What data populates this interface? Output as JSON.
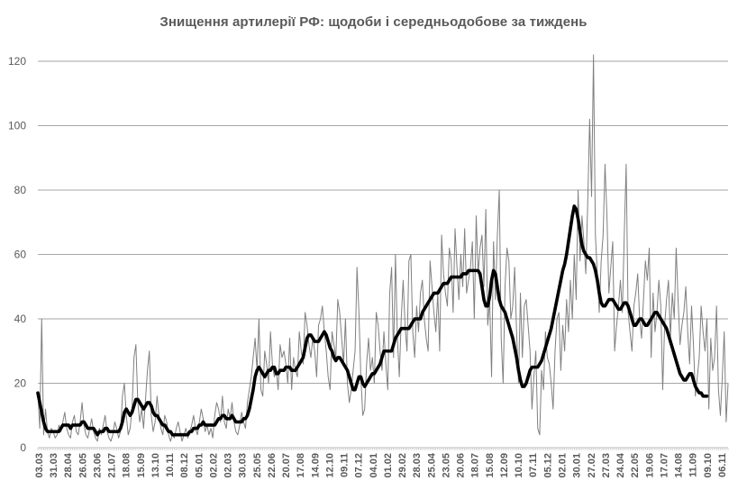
{
  "chart_data": {
    "type": "line",
    "title": "Знищення артилерії РФ: щодоби і середньодобове за тиждень",
    "xlabel": "",
    "ylabel": "",
    "ylim": [
      0,
      120
    ],
    "yticks": [
      0,
      20,
      40,
      60,
      80,
      100,
      120
    ],
    "grid": true,
    "legend": "none",
    "x_tick_labels": [
      "03.03",
      "31.03",
      "28.04",
      "26.05",
      "23.06",
      "21.07",
      "18.08",
      "15.09",
      "13.10",
      "10.11",
      "08.12",
      "05.01",
      "02.02",
      "02.03",
      "30.03",
      "25.05",
      "22.06",
      "20.07",
      "17.08",
      "14.09",
      "12.10",
      "09.11",
      "07.12",
      "04.01",
      "01.02",
      "29.02",
      "28.03",
      "25.04",
      "23.05",
      "20.06",
      "18.07",
      "15.08",
      "12.09",
      "10.10",
      "07.11",
      "05.12",
      "02.01",
      "30.01",
      "27.02",
      "27.03",
      "24.04",
      "22.05",
      "19.06",
      "17.07",
      "14.08",
      "11.09",
      "09.10",
      "06.11"
    ],
    "series": [
      {
        "name": "",
        "color": "#808080",
        "style": "thin",
        "values": [
          17,
          6,
          40,
          4,
          12,
          5,
          3,
          6,
          5,
          3,
          4,
          7,
          5,
          8,
          11,
          6,
          4,
          3,
          8,
          10,
          5,
          4,
          8,
          14,
          7,
          4,
          3,
          6,
          9,
          5,
          3,
          2,
          6,
          4,
          7,
          10,
          5,
          3,
          2,
          4,
          8,
          6,
          3,
          5,
          16,
          20,
          10,
          4,
          6,
          12,
          28,
          32,
          14,
          8,
          12,
          6,
          15,
          24,
          30,
          10,
          5,
          8,
          16,
          10,
          6,
          4,
          10,
          8,
          4,
          2,
          4,
          3,
          6,
          8,
          5,
          2,
          4,
          6,
          3,
          5,
          7,
          10,
          6,
          4,
          8,
          12,
          9,
          5,
          7,
          4,
          6,
          3,
          10,
          14,
          12,
          8,
          16,
          8,
          6,
          12,
          9,
          14,
          8,
          5,
          4,
          7,
          11,
          8,
          6,
          14,
          18,
          22,
          28,
          34,
          24,
          40,
          18,
          16,
          30,
          26,
          20,
          36,
          26,
          22,
          24,
          18,
          32,
          28,
          30,
          26,
          20,
          34,
          18,
          28,
          24,
          22,
          36,
          30,
          26,
          42,
          38,
          32,
          28,
          34,
          30,
          22,
          38,
          40,
          44,
          36,
          30,
          22,
          18,
          36,
          32,
          28,
          46,
          42,
          34,
          26,
          40,
          20,
          14,
          18,
          24,
          30,
          56,
          42,
          22,
          10,
          12,
          26,
          34,
          24,
          28,
          20,
          42,
          38,
          30,
          24,
          36,
          26,
          18,
          48,
          56,
          28,
          60,
          34,
          22,
          40,
          52,
          38,
          30,
          58,
          60,
          36,
          28,
          44,
          36,
          48,
          52,
          40,
          34,
          30,
          58,
          50,
          42,
          36,
          48,
          30,
          66,
          54,
          48,
          44,
          62,
          58,
          42,
          68,
          56,
          46,
          60,
          50,
          68,
          48,
          52,
          56,
          64,
          40,
          72,
          54,
          62,
          66,
          50,
          74,
          38,
          46,
          22,
          64,
          46,
          66,
          80,
          34,
          20,
          50,
          62,
          58,
          40,
          44,
          56,
          36,
          20,
          48,
          28,
          44,
          46,
          38,
          30,
          12,
          22,
          30,
          6,
          4,
          24,
          18,
          36,
          28,
          26,
          20,
          12,
          30,
          40,
          42,
          24,
          38,
          30,
          46,
          36,
          52,
          40,
          60,
          46,
          80,
          58,
          72,
          64,
          54,
          76,
          102,
          78,
          122,
          66,
          54,
          42,
          58,
          66,
          88,
          72,
          48,
          56,
          64,
          30,
          38,
          44,
          52,
          42,
          66,
          88,
          42,
          36,
          30,
          44,
          48,
          54,
          40,
          34,
          46,
          58,
          52,
          62,
          28,
          48,
          36,
          42,
          52,
          44,
          18,
          38,
          46,
          52,
          34,
          48,
          40,
          62,
          46,
          32,
          38,
          42,
          50,
          36,
          26,
          44,
          32,
          16,
          22,
          28,
          44,
          36,
          30,
          40,
          12,
          34,
          24,
          28,
          44,
          18,
          10,
          22,
          36,
          8,
          20
        ]
      },
      {
        "name": "",
        "color": "#000000",
        "style": "thick",
        "values": [
          17,
          14,
          11,
          8,
          6,
          5,
          5,
          5,
          5,
          5,
          5,
          5,
          6,
          7,
          7,
          7,
          7,
          6,
          7,
          7,
          7,
          7,
          7,
          8,
          8,
          7,
          6,
          6,
          6,
          6,
          5,
          4,
          5,
          5,
          5,
          6,
          6,
          5,
          5,
          5,
          5,
          5,
          5,
          6,
          8,
          11,
          12,
          11,
          10,
          11,
          13,
          15,
          15,
          14,
          13,
          12,
          13,
          14,
          14,
          13,
          11,
          10,
          10,
          9,
          8,
          7,
          7,
          6,
          5,
          5,
          4,
          4,
          4,
          4,
          4,
          4,
          4,
          4,
          4,
          5,
          5,
          6,
          6,
          6,
          7,
          7,
          8,
          7,
          7,
          7,
          7,
          7,
          7,
          8,
          9,
          9,
          10,
          10,
          9,
          9,
          9,
          10,
          9,
          8,
          8,
          8,
          8,
          9,
          9,
          10,
          12,
          15,
          18,
          22,
          24,
          25,
          24,
          23,
          22,
          23,
          24,
          24,
          25,
          25,
          23,
          23,
          24,
          24,
          24,
          25,
          25,
          25,
          24,
          24,
          24,
          25,
          26,
          27,
          28,
          31,
          34,
          35,
          35,
          34,
          33,
          33,
          33,
          34,
          35,
          36,
          35,
          33,
          31,
          30,
          28,
          27,
          28,
          28,
          27,
          26,
          25,
          24,
          22,
          20,
          18,
          18,
          20,
          22,
          22,
          20,
          19,
          20,
          21,
          22,
          23,
          23,
          24,
          25,
          26,
          28,
          30,
          30,
          30,
          30,
          30,
          32,
          34,
          35,
          36,
          37,
          37,
          37,
          37,
          37,
          38,
          39,
          40,
          40,
          40,
          40,
          42,
          43,
          44,
          45,
          46,
          47,
          48,
          48,
          48,
          49,
          50,
          51,
          51,
          51,
          52,
          53,
          53,
          53,
          53,
          53,
          53,
          54,
          54,
          54,
          55,
          55,
          55,
          55,
          55,
          55,
          54,
          50,
          46,
          44,
          44,
          47,
          52,
          55,
          54,
          50,
          46,
          44,
          43,
          42,
          40,
          38,
          36,
          34,
          31,
          28,
          24,
          21,
          19,
          19,
          20,
          22,
          24,
          25,
          25,
          25,
          25,
          26,
          27,
          29,
          31,
          33,
          35,
          37,
          40,
          43,
          46,
          49,
          52,
          55,
          57,
          60,
          64,
          68,
          72,
          75,
          74,
          71,
          67,
          63,
          61,
          60,
          59,
          59,
          58,
          57,
          55,
          52,
          48,
          45,
          44,
          44,
          45,
          46,
          46,
          46,
          45,
          44,
          43,
          43,
          44,
          45,
          45,
          44,
          42,
          40,
          38,
          38,
          39,
          40,
          40,
          39,
          38,
          38,
          39,
          40,
          41,
          42,
          42,
          41,
          40,
          39,
          38,
          37,
          35,
          33,
          31,
          29,
          27,
          25,
          23,
          22,
          21,
          21,
          22,
          23,
          23,
          21,
          19,
          18,
          17,
          17,
          16,
          16,
          16
        ]
      }
    ]
  }
}
